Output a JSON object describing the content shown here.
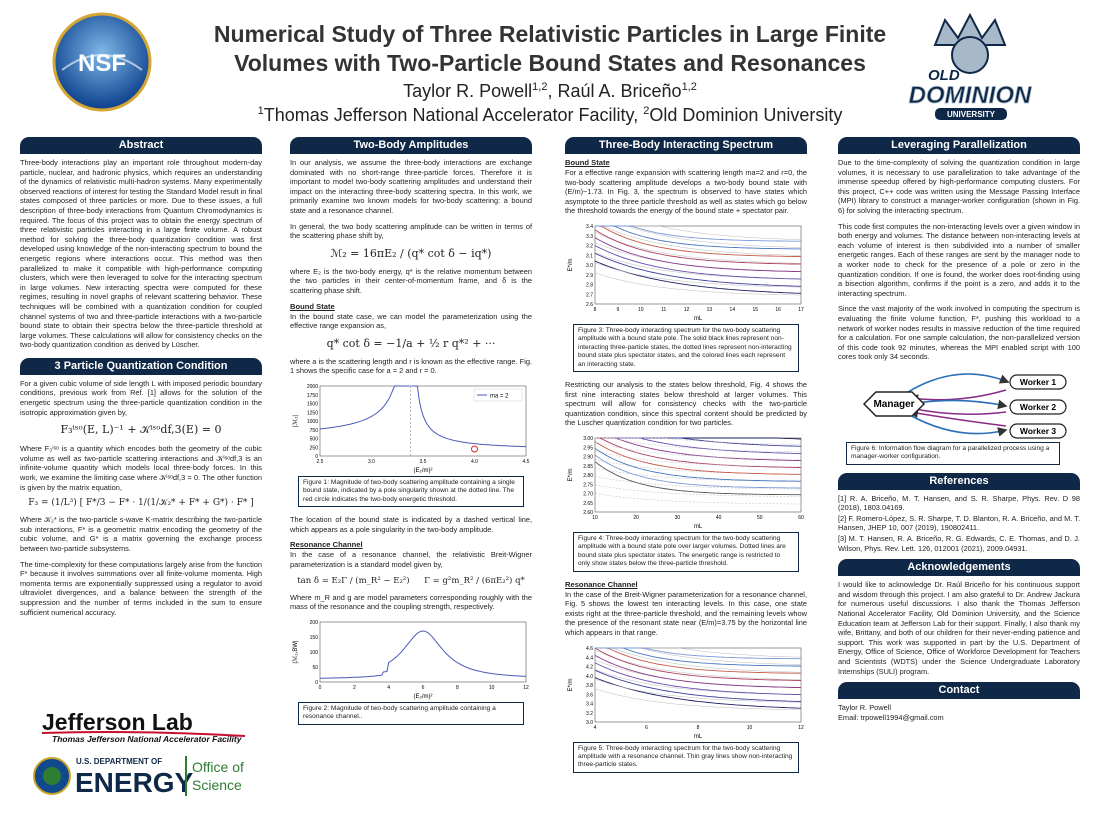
{
  "header": {
    "title": "Numerical Study of Three Relativistic Particles in Large Finite Volumes with Two-Particle Bound States and Resonances",
    "authors": [
      {
        "name": "Taylor R. Powell",
        "affil": "1,2"
      },
      {
        "name": "Raúl A. Briceño",
        "affil": "1,2"
      }
    ],
    "affiliations": [
      {
        "mark": "1",
        "name": "Thomas Jefferson National Accelerator Facility"
      },
      {
        "mark": "2",
        "name": "Old Dominion University"
      }
    ],
    "nsf_logo": "NSF",
    "odu_logo": {
      "line1": "OLD",
      "line2": "DOMINION",
      "line3": "UNIVERSITY"
    }
  },
  "abstract": {
    "heading": "Abstract",
    "text": "Three-body interactions play an important role throughout modern-day particle, nuclear, and hadronic physics, which requires an understanding of the dynamics of relativistic multi-hadron systems. Many experimentally observed reactions of interest for testing the Standard Model result in final states composed of three particles or more. Due to these issues, a full description of three-body interactions from Quantum Chromodynamics is required. The focus of this project was to obtain the energy spectrum of three relativistic particles interacting in a large finite volume. A robust method for solving the three-body quantization condition was first developed using knowledge of the non-interacting spectrum to bound the energetic regions where interactions occur. This method was then parallelized to make it compatible with high-performance computing clusters, which were then leveraged to solve for the interacting spectrum in large volumes. New interacting spectra were computed for these regimes, resulting in novel graphs of relevant scattering behavior. These techniques will be combined with a quantization condition for coupled channel systems of two and three-particle interactions with a two-particle bound state to obtain their spectra below the three-particle threshold at large volumes. These calculations will allow for consistency checks on the two-body quantization condition as derived by Lüscher."
  },
  "quantization": {
    "heading": "3 Particle Quantization Condition",
    "p1": "For a given cubic volume of side length L with imposed periodic boundary conditions, previous work from Ref. [1] allows for the solution of the energetic spectrum using the three-particle quantization condition in the isotropic approximation given by,",
    "eq1": "F₃ⁱˢᵒ(E, L)⁻¹ + 𝒦ⁱˢᵒdf,3(E) = 0",
    "p2": "Where F₃ⁱˢᵒ is a quantity which encodes both the geometry of the cubic volume as well as two-particle scattering interactions and 𝒦ⁱˢᵒdf,3 is an infinite-volume quantity which models local three-body forces. In this work, we examine the limiting case where 𝒦ⁱˢᵒdf,3 = 0. The other function is given by the matrix equation,",
    "eq2": "F₃ = (1/L³) [ F*/3 − F* · 1/(1/𝒦₂* + F* + G*) · F* ]",
    "p3": "Where 𝒦₂* is the two-particle s-wave K-matrix describing the two-particle sub interactions, F* is a geometric matrix encoding the geometry of the cubic volume, and G* is a matrix governing the exchange process between two-particle subsystems.",
    "p4": "The time-complexity for these computations largely arise from the function F* because it involves summations over all finite-volume momenta. High momenta terms are exponentially suppressed using a regulator to avoid ultraviolet divergences, and a balance between the strength of the suppression and the number of terms included in the sum to ensure sufficient numerical accuracy."
  },
  "logos": {
    "jlab": "Jefferson Lab",
    "jlab_sub": "Thomas Jefferson National Accelerator Facility",
    "doe_top": "U.S. DEPARTMENT OF",
    "doe_main": "ENERGY",
    "office1": "Office of",
    "office2": "Science"
  },
  "two_body": {
    "heading": "Two-Body Amplitudes",
    "p1": "In our analysis, we assume the three-body interactions are exchange dominated with no short-range three-particle forces. Therefore it is important to model two-body scattering amplitudes and understand their impact on the interacting three-body scattering spectra. In this work, we primarily examine two known models for two-body scattering: a bound state and a resonance channel.",
    "p2": "In general, the two body scattering amplitude can be written in terms of the scattering phase shift by,",
    "eq1": "ℳ₂ = 16πE₂ / (q* cot δ − iq*)",
    "p3": "where E₂ is the two-body energy, q* is the relative momentum between the two particles in their center-of-momentum frame, and δ is the scattering phase shift.",
    "sub1": "Bound State",
    "p4": "In the bound state case, we can model the parameterization using the effective range expansion as,",
    "eq2": "q* cot δ = −1/a + ½ r q*² + ···",
    "p5": "where a is the scattering length and r is known as the effective range. Fig. 1 shows the specific case for a = 2 and r = 0.",
    "fig1": {
      "xticks": [
        "2.5",
        "3.0",
        "3.5",
        "4.0",
        "4.5"
      ],
      "yticks": [
        "0",
        "250",
        "500",
        "750",
        "1000",
        "1250",
        "1500",
        "1750",
        "2000"
      ],
      "xlabel": "(E₂/m)²",
      "ylabel": "|ℳ₂|",
      "legend": "ma = 2",
      "caption": "Figure 1: Magnitude of two-body scattering amplitude containing a single bound state, indicated by a pole singularity shown at the dotted line. The red circle indicates the two-body energetic threshold."
    },
    "p6": "The location of the bound state is indicated by a dashed vertical line, which appears as a pole singularity in the two-body amplitude.",
    "sub2": "Resonance Channel",
    "p7": "In the case of a resonance channel, the relativistic Breit-Wigner parameterization is a standard model given by,",
    "eq3": "tan δ = E₂Γ / (m_R² − E₂²)",
    "eq4": "Γ = g²m_R² / (6πE₂²) q*",
    "p8": "Where m_R and g are model parameters corresponding roughly with the mass of the resonance and the coupling strength, respectively.",
    "fig2": {
      "xticks": [
        "0",
        "2",
        "4",
        "6",
        "8",
        "10",
        "12"
      ],
      "yticks": [
        "0",
        "50",
        "100",
        "150",
        "200"
      ],
      "xlabel": "(E₂/m)²",
      "ylabel": "|ℳ₂,BW|",
      "caption": "Figure 2: Magnitude of two-body scattering amplitude containing a resonance channel.."
    }
  },
  "three_body": {
    "heading": "Three-Body Interacting Spectrum",
    "sub1": "Bound State",
    "p1": "For a effective range expansion with scattering length ma=2 and r=0, the two-body scattering amplitude develops a two-body bound state with (E/m)~1.73. In Fig. 3, the spectrum is observed to have states which asymptote to the three particle threshold as well as states which go below the threshold towards the energy of the bound state + spectator pair.",
    "fig3": {
      "xticks": [
        "8",
        "9",
        "10",
        "11",
        "12",
        "13",
        "14",
        "15",
        "16",
        "17"
      ],
      "yticks": [
        "2.6",
        "2.7",
        "2.8",
        "2.9",
        "3.0",
        "3.1",
        "3.2",
        "3.3",
        "3.4"
      ],
      "xlabel": "mL",
      "ylabel": "E*/m",
      "caption": "Figure 3: Three-body interacting spectrum for the two-body scattering amplitude with a bound state pole. The solid black lines represent non-interacting three-particle states, the dotted lines represent non-interacting bound state plus spectator states, and the colored lines each represent an interacting state."
    },
    "p2": "Restricting our analysis to the states below threshold, Fig. 4 shows the first nine interacting states below threshold at larger volumes. This spectrum will allow for consistency checks with the two-particle quantization condition, since this spectral content should be predicted by the Luscher quantization condition for two particles.",
    "fig4": {
      "xticks": [
        "10",
        "20",
        "30",
        "40",
        "50",
        "60"
      ],
      "yticks": [
        "2.60",
        "2.65",
        "2.70",
        "2.75",
        "2.80",
        "2.85",
        "2.90",
        "2.95",
        "3.00"
      ],
      "xlabel": "mL",
      "ylabel": "E*/m",
      "caption": "Figure 4: Three-body interacting spectrum for the two-body scattering amplitude with a bound state pole over larger volumes. Dotted lines are bound state plus spectator states. The energetic range is restricted to only show states below the three-particle threshold."
    },
    "sub2": "Resonance Channel",
    "p3": "In the case of the Breit-Wigner parameterization for a resonance channel, Fig. 5 shows the lowest ten interacting levels. In this case, one state exists right at the three-particle threshold, and the remaining levels whow the presence of the resonant state near (E/m)=3.75 by the horizontal line which appears in that range.",
    "fig5": {
      "xticks": [
        "4",
        "6",
        "8",
        "10",
        "12"
      ],
      "yticks": [
        "3.0",
        "3.2",
        "3.4",
        "3.6",
        "3.8",
        "4.0",
        "4.2",
        "4.4",
        "4.6"
      ],
      "xlabel": "mL",
      "ylabel": "E*/m",
      "caption": "Figure 5: Three-body interacting spectrum for the two-body scattering amplitude with a resonance channel. Thin gray lines show non-interacting three-particle states."
    }
  },
  "parallel": {
    "heading": "Leveraging Parallelization",
    "p1": "Due to the time-complexity of solving the quantization condition in large volumes, it is necessary to use parallelization to take advantage of the immense speedup offered by high-performance computing clusters. For this project, C++ code was written using the Message Passing Interface (MPI) library to construct a manager-worker configuration (shown in Fig. 6) for solving the interacting spectrum.",
    "p2": "This code first computes the non-interacting levels over a given window in both energy and volumes. The distance between non-interacting levels at each volume of interest is then subdivided into a number of smaller energetic ranges. Each of these ranges are sent by the manager node to a worker node to check for the presence of a pole or zero in the quantization condition. If one is found, the worker does root-finding using a bisection algorithm, confirms if the point is a zero, and adds it to the interacting spectrum.",
    "p3": "Since the vast majority of the work involved in computing the spectrum is evaluating the finite volume function, F*, pushing this workload to a network of worker nodes results in massive reduction of the time required for a calculation. For one sample calculation, the non-parallelized version of this code took 92 minutes, whereas the MPI enabled script with 100 cores took only 34 seconds.",
    "nodes": [
      "Manager",
      "Worker 1",
      "Worker 2",
      "Worker 3"
    ],
    "caption": "Figure 6: Information flow diagram for a parallelized process using a manager-worker configuration."
  },
  "references": {
    "heading": "References",
    "items": [
      "[1] R. A. Briceño, M. T. Hansen, and S. R. Sharpe, Phys. Rev. D 98 (2018), 1803.04169.",
      "[2] F. Romero-López, S. R. Sharpe, T. D. Blanton, R. A. Briceño, and M. T. Hansen, JHEP 10, 007 (2019), 190802411.",
      "[3] M. T. Hansen, R. A. Briceño, R. G. Edwards, C. E. Thomas, and D. J. Wilson, Phys. Rev. Lett. 126, 012001 (2021), 2009.04931."
    ]
  },
  "acknowledgements": {
    "heading": "Acknowledgements",
    "text": "I would like to acknowledge Dr. Raúl Briceño for his continuous support and wisdom through this project. I am also grateful to Dr. Andrew Jackura for numerous useful discussions. I also thank the Thomas Jefferson National Accelerator Facility, Old Dominion University, and the Science Education team at Jefferson Lab for their support. Finally, I also thank my wife, Brittany, and both of our children for their never-ending patience and support. This work was supported in part by the U.S. Department of Energy, Office of Science, Office of Workforce Development for Teachers and Scientists (WDTS) under the Science Undergraduate Laboratory Internships (SULI) program."
  },
  "contact": {
    "heading": "Contact",
    "name": "Taylor R. Powell",
    "email": "Email: trpowell1994@gmail.com"
  }
}
